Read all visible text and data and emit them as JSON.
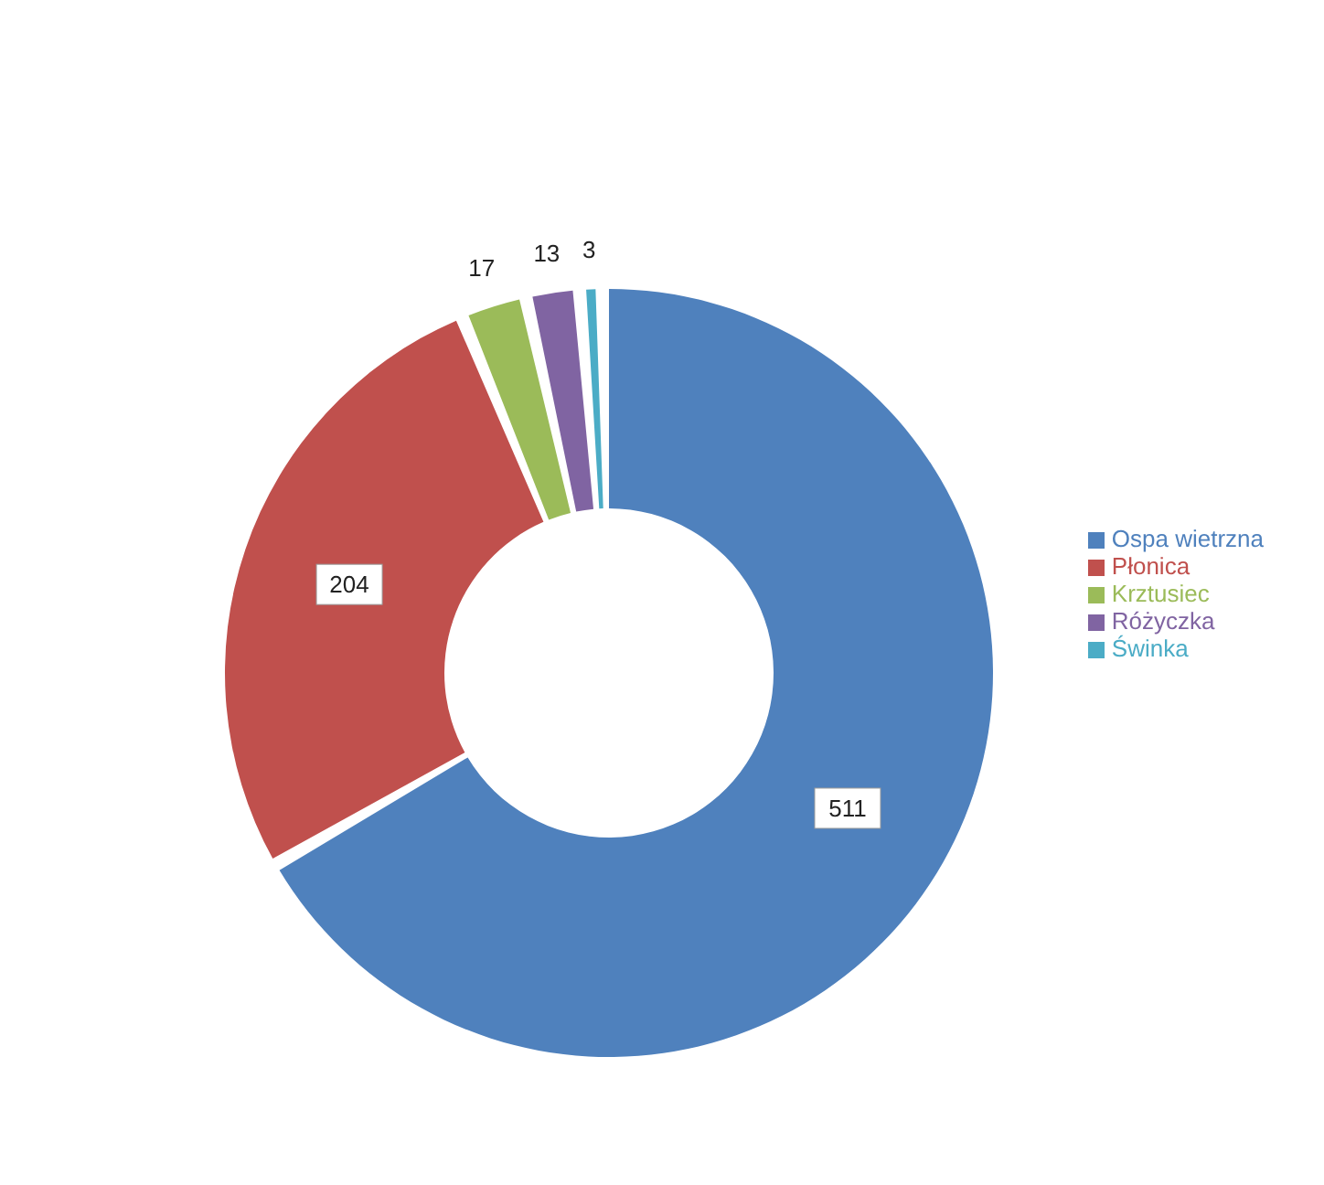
{
  "chart_data": {
    "type": "donut",
    "categories": [
      "Ospa wietrzna",
      "Płonica",
      "Krztusiec",
      "Różyczka",
      "Świnka"
    ],
    "values": [
      511,
      204,
      17,
      13,
      3
    ],
    "colors": [
      "#4f81bd",
      "#c0504d",
      "#9bbb59",
      "#8064a2",
      "#4bacc6"
    ],
    "data_labels": true,
    "legend": "right"
  }
}
